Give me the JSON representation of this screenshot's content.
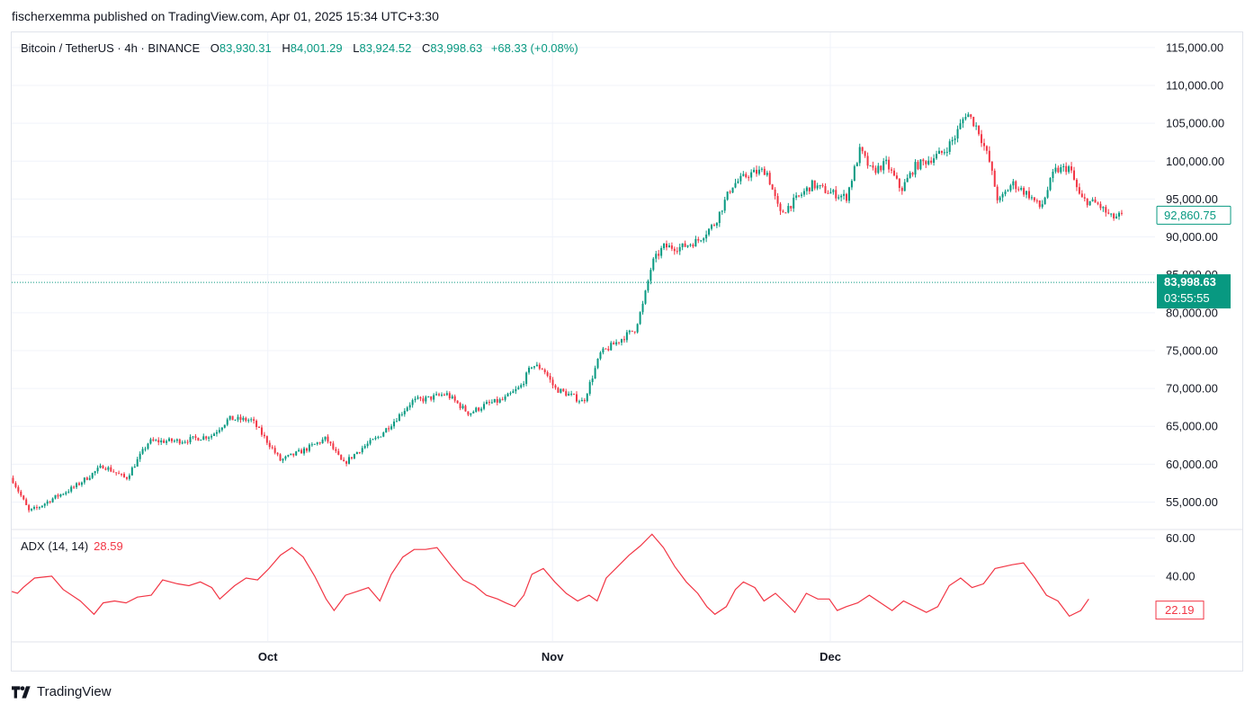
{
  "header": {
    "published_text": "fischerxemma published on TradingView.com, Apr 01, 2025 15:34 UTC+3:30"
  },
  "legend": {
    "symbol": "Bitcoin / TetherUS · 4h · BINANCE",
    "open_label": "O",
    "open_value": "83,930.31",
    "high_label": "H",
    "high_value": "84,001.29",
    "low_label": "L",
    "low_value": "83,924.52",
    "close_label": "C",
    "close_value": "83,998.63",
    "change": "+68.33 (+0.08%)"
  },
  "price_tags": {
    "last_visible": "92,860.75",
    "current_price": "83,998.63",
    "countdown": "03:55:55"
  },
  "indicator": {
    "name": "ADX (14, 14)",
    "value": "28.59",
    "last_visible": "22.19"
  },
  "footer": {
    "brand": "TradingView"
  },
  "colors": {
    "up": "#089981",
    "down": "#f23645",
    "adx": "#f23645",
    "grid": "#f0f3fa"
  },
  "chart_data": [
    {
      "type": "candlestick",
      "title": "Bitcoin / TetherUS · 4h · BINANCE",
      "ylim": [
        51500,
        117000
      ],
      "y_ticks": [
        55000,
        60000,
        65000,
        70000,
        75000,
        80000,
        85000,
        90000,
        95000,
        100000,
        105000,
        110000,
        115000
      ],
      "y_tick_labels": [
        "55,000.00",
        "60,000.00",
        "65,000.00",
        "70,000.00",
        "75,000.00",
        "80,000.00",
        "85,000.00",
        "90,000.00",
        "95,000.00",
        "100,000.00",
        "105,000.00",
        "110,000.00",
        "115,000.00"
      ],
      "x_ticks": [
        "Oct",
        "Nov",
        "Dec"
      ],
      "x_tick_positions": [
        0.224,
        0.473,
        0.716
      ],
      "price_path": [
        [
          0.0,
          58200
        ],
        [
          0.015,
          53800
        ],
        [
          0.022,
          54200
        ],
        [
          0.035,
          55400
        ],
        [
          0.055,
          57000
        ],
        [
          0.08,
          59800
        ],
        [
          0.1,
          58100
        ],
        [
          0.12,
          63000
        ],
        [
          0.15,
          63100
        ],
        [
          0.175,
          63800
        ],
        [
          0.19,
          66000
        ],
        [
          0.21,
          65800
        ],
        [
          0.225,
          62700
        ],
        [
          0.235,
          60500
        ],
        [
          0.255,
          61800
        ],
        [
          0.275,
          63400
        ],
        [
          0.29,
          60000
        ],
        [
          0.305,
          62000
        ],
        [
          0.32,
          63500
        ],
        [
          0.335,
          65800
        ],
        [
          0.35,
          68300
        ],
        [
          0.365,
          68700
        ],
        [
          0.38,
          69300
        ],
        [
          0.4,
          66700
        ],
        [
          0.415,
          67900
        ],
        [
          0.43,
          68500
        ],
        [
          0.445,
          70200
        ],
        [
          0.455,
          73100
        ],
        [
          0.465,
          72600
        ],
        [
          0.475,
          70000
        ],
        [
          0.49,
          69000
        ],
        [
          0.5,
          68200
        ],
        [
          0.515,
          74600
        ],
        [
          0.53,
          76200
        ],
        [
          0.545,
          77800
        ],
        [
          0.552,
          81000
        ],
        [
          0.56,
          86500
        ],
        [
          0.57,
          88700
        ],
        [
          0.585,
          88600
        ],
        [
          0.6,
          89500
        ],
        [
          0.615,
          91800
        ],
        [
          0.63,
          96800
        ],
        [
          0.645,
          98300
        ],
        [
          0.66,
          98800
        ],
        [
          0.672,
          93000
        ],
        [
          0.685,
          94800
        ],
        [
          0.7,
          96900
        ],
        [
          0.715,
          95900
        ],
        [
          0.73,
          95200
        ],
        [
          0.742,
          101500
        ],
        [
          0.752,
          98600
        ],
        [
          0.765,
          99700
        ],
        [
          0.778,
          96200
        ],
        [
          0.79,
          99300
        ],
        [
          0.805,
          100400
        ],
        [
          0.815,
          101200
        ],
        [
          0.825,
          103200
        ],
        [
          0.835,
          106500
        ],
        [
          0.845,
          104300
        ],
        [
          0.855,
          100000
        ],
        [
          0.863,
          94500
        ],
        [
          0.875,
          97100
        ],
        [
          0.89,
          95500
        ],
        [
          0.9,
          93800
        ],
        [
          0.912,
          98700
        ],
        [
          0.925,
          99200
        ],
        [
          0.935,
          95000
        ],
        [
          0.95,
          94300
        ],
        [
          0.962,
          92500
        ],
        [
          0.972,
          92860
        ]
      ],
      "last_visible_close": 92860.75,
      "current_price": 83998.63
    },
    {
      "type": "line",
      "title": "ADX (14, 14)",
      "ylim": [
        6,
        64
      ],
      "y_ticks": [
        40,
        60
      ],
      "y_tick_labels": [
        "40.00",
        "60.00"
      ],
      "series": [
        {
          "name": "ADX (14, 14)",
          "points": [
            [
              0.0,
              32
            ],
            [
              0.005,
              31
            ],
            [
              0.01,
              34
            ],
            [
              0.02,
              39
            ],
            [
              0.035,
              40
            ],
            [
              0.045,
              33
            ],
            [
              0.06,
              27
            ],
            [
              0.072,
              20
            ],
            [
              0.08,
              26
            ],
            [
              0.09,
              27
            ],
            [
              0.1,
              26
            ],
            [
              0.11,
              29
            ],
            [
              0.122,
              30
            ],
            [
              0.132,
              38
            ],
            [
              0.145,
              36
            ],
            [
              0.155,
              35
            ],
            [
              0.165,
              37
            ],
            [
              0.175,
              34
            ],
            [
              0.182,
              28
            ],
            [
              0.195,
              35
            ],
            [
              0.205,
              39
            ],
            [
              0.215,
              38
            ],
            [
              0.225,
              44
            ],
            [
              0.235,
              51
            ],
            [
              0.245,
              55
            ],
            [
              0.255,
              50
            ],
            [
              0.265,
              40
            ],
            [
              0.275,
              28
            ],
            [
              0.282,
              22
            ],
            [
              0.292,
              30
            ],
            [
              0.302,
              32
            ],
            [
              0.312,
              34
            ],
            [
              0.322,
              27
            ],
            [
              0.332,
              41
            ],
            [
              0.342,
              50
            ],
            [
              0.352,
              54
            ],
            [
              0.362,
              54
            ],
            [
              0.372,
              55
            ],
            [
              0.385,
              45
            ],
            [
              0.395,
              38
            ],
            [
              0.405,
              35
            ],
            [
              0.415,
              30
            ],
            [
              0.425,
              28
            ],
            [
              0.432,
              26
            ],
            [
              0.44,
              24
            ],
            [
              0.448,
              30
            ],
            [
              0.455,
              41
            ],
            [
              0.465,
              44
            ],
            [
              0.475,
              37
            ],
            [
              0.485,
              31
            ],
            [
              0.495,
              27
            ],
            [
              0.505,
              30
            ],
            [
              0.512,
              27
            ],
            [
              0.52,
              39
            ],
            [
              0.53,
              45
            ],
            [
              0.54,
              51
            ],
            [
              0.55,
              56
            ],
            [
              0.56,
              62
            ],
            [
              0.57,
              55
            ],
            [
              0.58,
              45
            ],
            [
              0.59,
              37
            ],
            [
              0.6,
              31
            ],
            [
              0.608,
              24
            ],
            [
              0.615,
              20
            ],
            [
              0.625,
              24
            ],
            [
              0.633,
              33
            ],
            [
              0.64,
              37
            ],
            [
              0.65,
              34
            ],
            [
              0.658,
              27
            ],
            [
              0.668,
              31
            ],
            [
              0.675,
              27
            ],
            [
              0.685,
              21
            ],
            [
              0.695,
              31
            ],
            [
              0.705,
              28
            ],
            [
              0.715,
              28
            ],
            [
              0.722,
              22
            ],
            [
              0.73,
              24
            ],
            [
              0.74,
              26
            ],
            [
              0.75,
              30
            ],
            [
              0.76,
              26
            ],
            [
              0.77,
              22
            ],
            [
              0.78,
              27
            ],
            [
              0.79,
              24
            ],
            [
              0.8,
              21
            ],
            [
              0.81,
              24
            ],
            [
              0.82,
              35
            ],
            [
              0.83,
              39
            ],
            [
              0.84,
              34
            ],
            [
              0.85,
              36
            ],
            [
              0.86,
              44
            ],
            [
              0.875,
              46
            ],
            [
              0.885,
              47
            ],
            [
              0.895,
              39
            ],
            [
              0.905,
              30
            ],
            [
              0.915,
              27
            ],
            [
              0.925,
              19
            ],
            [
              0.935,
              22
            ],
            [
              0.942,
              28
            ]
          ]
        }
      ],
      "last_visible_value": 22.19
    }
  ]
}
